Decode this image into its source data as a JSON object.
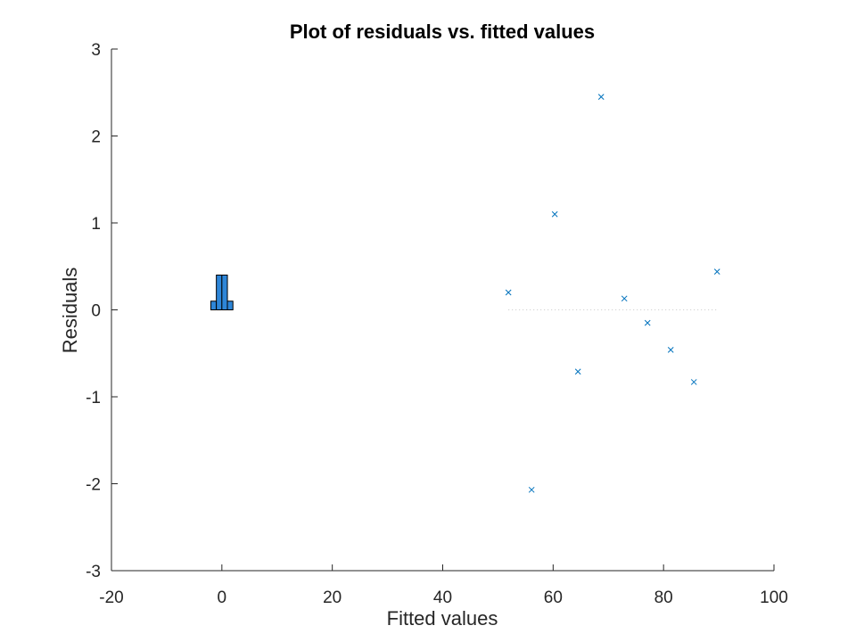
{
  "chart_data": {
    "type": "scatter",
    "title": "Plot of residuals vs. fitted values",
    "xlabel": "Fitted values",
    "ylabel": "Residuals",
    "xlim": [
      -20,
      100
    ],
    "ylim": [
      -3,
      3
    ],
    "xticks": [
      -20,
      0,
      20,
      40,
      60,
      80,
      100
    ],
    "yticks": [
      -3,
      -2,
      -1,
      0,
      1,
      2,
      3
    ],
    "grid": false,
    "marker": "x",
    "marker_color": "#0072BD",
    "points": [
      {
        "x": 51.9,
        "y": 0.2
      },
      {
        "x": 56.1,
        "y": -2.07
      },
      {
        "x": 60.3,
        "y": 1.1
      },
      {
        "x": 64.5,
        "y": -0.71
      },
      {
        "x": 68.7,
        "y": 2.45
      },
      {
        "x": 72.9,
        "y": 0.13
      },
      {
        "x": 77.1,
        "y": -0.15
      },
      {
        "x": 81.3,
        "y": -0.46
      },
      {
        "x": 85.5,
        "y": -0.83
      },
      {
        "x": 89.7,
        "y": 0.44
      }
    ],
    "zero_line": {
      "x_start": 51.9,
      "x_end": 89.7,
      "y": 0,
      "style": "dotted",
      "color": "#c8c8c8"
    },
    "histogram": {
      "fill": "#2e86d8",
      "edge": "#000000",
      "bins": [
        {
          "x0": -2,
          "x1": -1,
          "h": 0.1
        },
        {
          "x0": -1,
          "x1": 0,
          "h": 0.4
        },
        {
          "x0": 0,
          "x1": 1,
          "h": 0.4
        },
        {
          "x0": 1,
          "x1": 2,
          "h": 0.1
        }
      ]
    }
  }
}
